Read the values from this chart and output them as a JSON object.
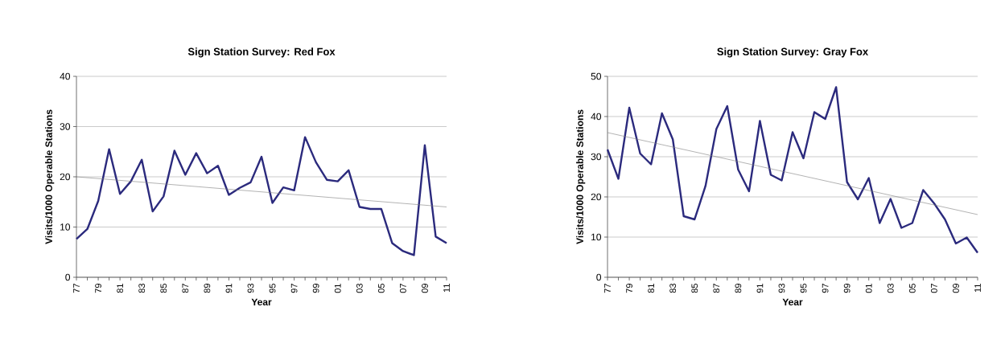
{
  "chart_data": [
    {
      "type": "line",
      "title": "Sign Station Survey: Red Fox",
      "xlabel": "Year",
      "ylabel": "Visits/1000 Operable Stations",
      "categories": [
        "77",
        null,
        "79",
        null,
        "81",
        null,
        "83",
        null,
        "85",
        null,
        "87",
        null,
        "89",
        null,
        "91",
        null,
        "93",
        null,
        "95",
        null,
        "97",
        null,
        "99",
        null,
        "01",
        null,
        "03",
        null,
        "05",
        null,
        "07",
        null,
        "09",
        null,
        "11"
      ],
      "ylim": [
        0,
        40
      ],
      "yticks": [
        0,
        10,
        20,
        30,
        40
      ],
      "grid": "y",
      "series": [
        {
          "color": "#2b2a7d",
          "values": [
            7.6,
            9.6,
            15.2,
            25.5,
            16.6,
            19.1,
            23.4,
            13.1,
            16.1,
            25.2,
            20.4,
            24.7,
            20.7,
            22.2,
            16.4,
            17.8,
            18.9,
            24.0,
            14.8,
            17.9,
            17.3,
            27.9,
            22.9,
            19.4,
            19.1,
            21.3,
            14.0,
            13.6,
            13.6,
            6.8,
            5.2,
            4.4,
            26.3,
            8.1,
            6.8
          ]
        },
        {
          "type": "line",
          "color": "#808080",
          "x": [
            "77",
            "11"
          ],
          "values": [
            20.0,
            14.0
          ]
        }
      ]
    },
    {
      "type": "line",
      "title": "Sign Station Survey: Gray Fox",
      "xlabel": "Year",
      "ylabel": "Visits/1000 Operable Stations",
      "categories": [
        "77",
        null,
        "79",
        null,
        "81",
        null,
        "83",
        null,
        "85",
        null,
        "87",
        null,
        "89",
        null,
        "91",
        null,
        "93",
        null,
        "95",
        null,
        "97",
        null,
        "99",
        null,
        "01",
        null,
        "03",
        null,
        "05",
        null,
        "07",
        null,
        "09",
        null,
        "11"
      ],
      "ylim": [
        0,
        50
      ],
      "yticks": [
        0,
        10,
        20,
        30,
        40,
        50
      ],
      "grid": "y",
      "series": [
        {
          "color": "#2b2a7d",
          "values": [
            31.8,
            24.5,
            42.2,
            30.8,
            28.1,
            40.8,
            34.3,
            15.2,
            14.4,
            22.7,
            36.9,
            42.6,
            26.8,
            21.4,
            38.9,
            25.5,
            24.1,
            36.1,
            29.6,
            41.1,
            39.4,
            47.3,
            23.7,
            19.4,
            24.7,
            13.5,
            19.5,
            12.3,
            13.5,
            21.7,
            18.4,
            14.4,
            8.4,
            9.9,
            6.1
          ]
        },
        {
          "type": "line",
          "color": "#808080",
          "x": [
            "77",
            "11"
          ],
          "values": [
            36.0,
            15.6
          ]
        }
      ]
    }
  ]
}
